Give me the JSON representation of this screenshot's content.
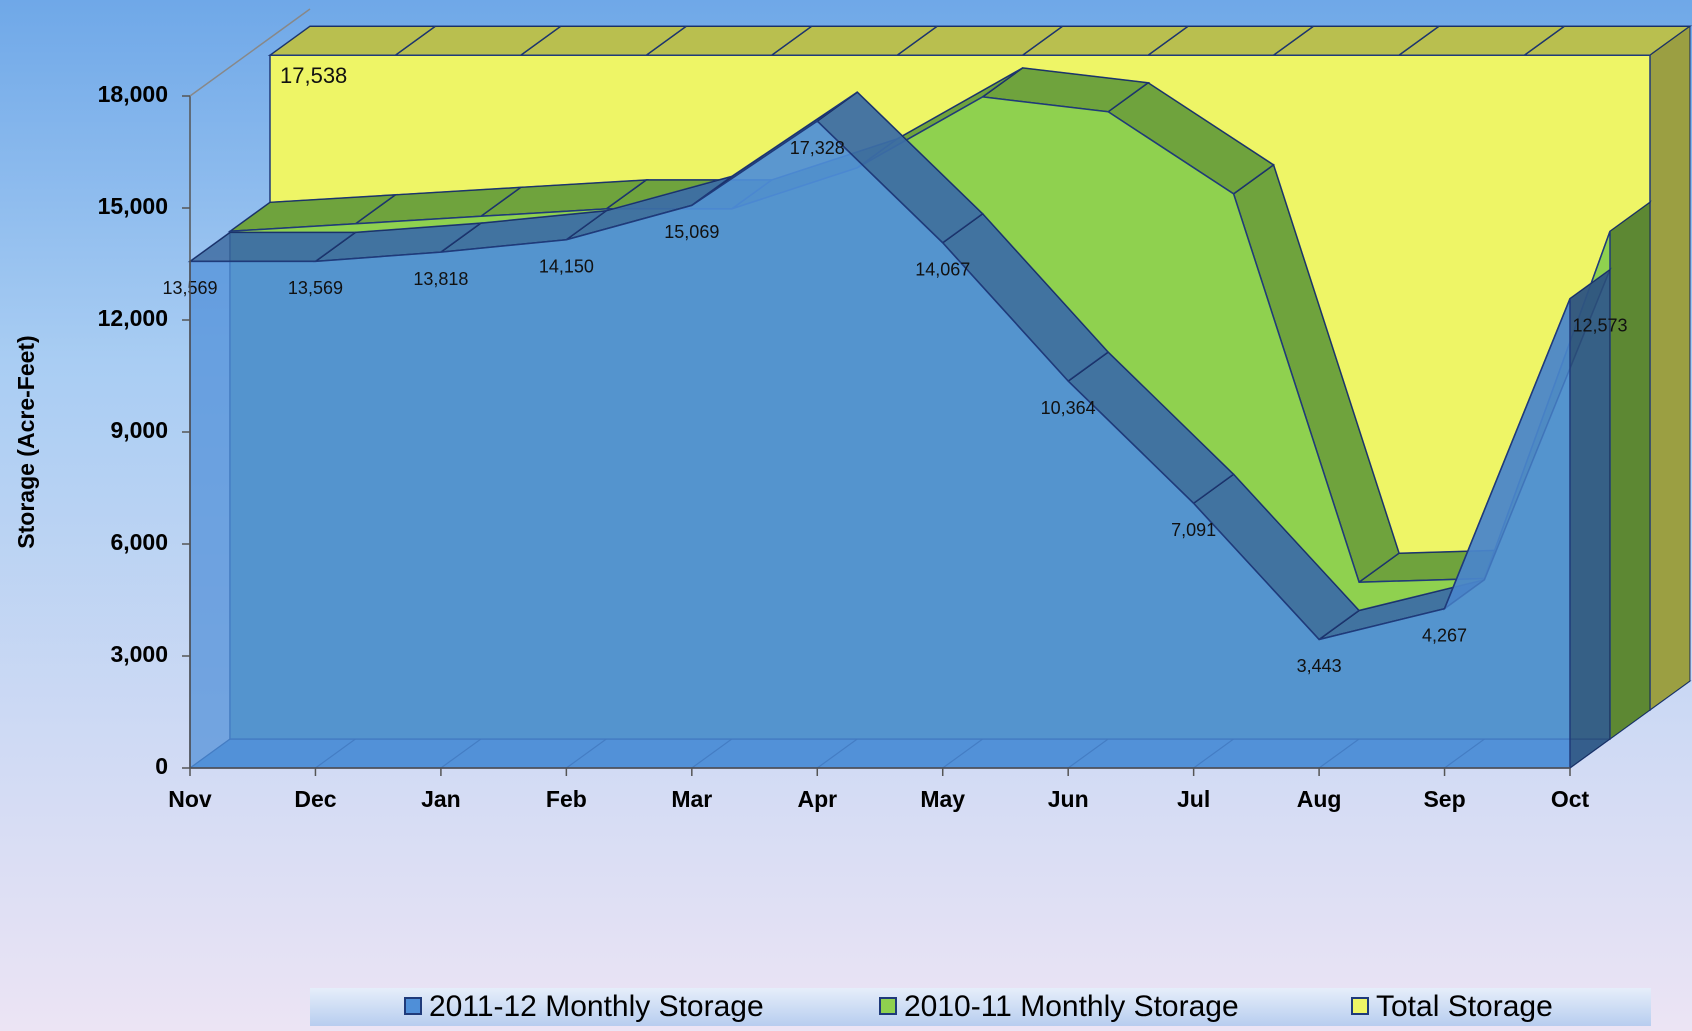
{
  "chart_data": {
    "type": "area3d",
    "y_label": "Storage (Acre-Feet)",
    "categories": [
      "Nov",
      "Dec",
      "Jan",
      "Feb",
      "Mar",
      "Apr",
      "May",
      "Jun",
      "Jul",
      "Aug",
      "Sep",
      "Oct"
    ],
    "series": [
      {
        "name": "2011-12 Monthly Storage",
        "color": "#4f8fd8",
        "values": [
          13569,
          13569,
          13818,
          14150,
          15069,
          17328,
          14067,
          10364,
          7091,
          3443,
          4267,
          12573
        ],
        "value_labels": [
          "13,569",
          "13,569",
          "13,818",
          "14,150",
          "15,069",
          "17,328",
          "14,067",
          "10,364",
          "7,091",
          "3,443",
          "4,267",
          "12,573"
        ]
      },
      {
        "name": "2010-11 Monthly Storage",
        "color": "#8fd14f",
        "values": [
          13600,
          13800,
          14000,
          14200,
          14200,
          15300,
          17200,
          16800,
          14600,
          4200,
          4300,
          13600
        ]
      },
      {
        "name": "Total Storage",
        "color": "#eef566",
        "values": [
          17538,
          17538,
          17538,
          17538,
          17538,
          17538,
          17538,
          17538,
          17538,
          17538,
          17538,
          17538
        ],
        "value_labels": [
          "17,538",
          null,
          null,
          null,
          null,
          null,
          null,
          null,
          null,
          null,
          null,
          null
        ]
      }
    ],
    "ylim": [
      0,
      18000
    ],
    "yticks": [
      0,
      {
        "value": 3000,
        "label": "3,000"
      },
      {
        "value": 6000,
        "label": "6,000"
      },
      {
        "value": 9000,
        "label": "9,000"
      },
      {
        "value": 12000,
        "label": "12,000"
      },
      {
        "value": 15000,
        "label": "15,000"
      },
      {
        "value": 18000,
        "label": "18,000"
      }
    ],
    "legend": "bottom"
  }
}
